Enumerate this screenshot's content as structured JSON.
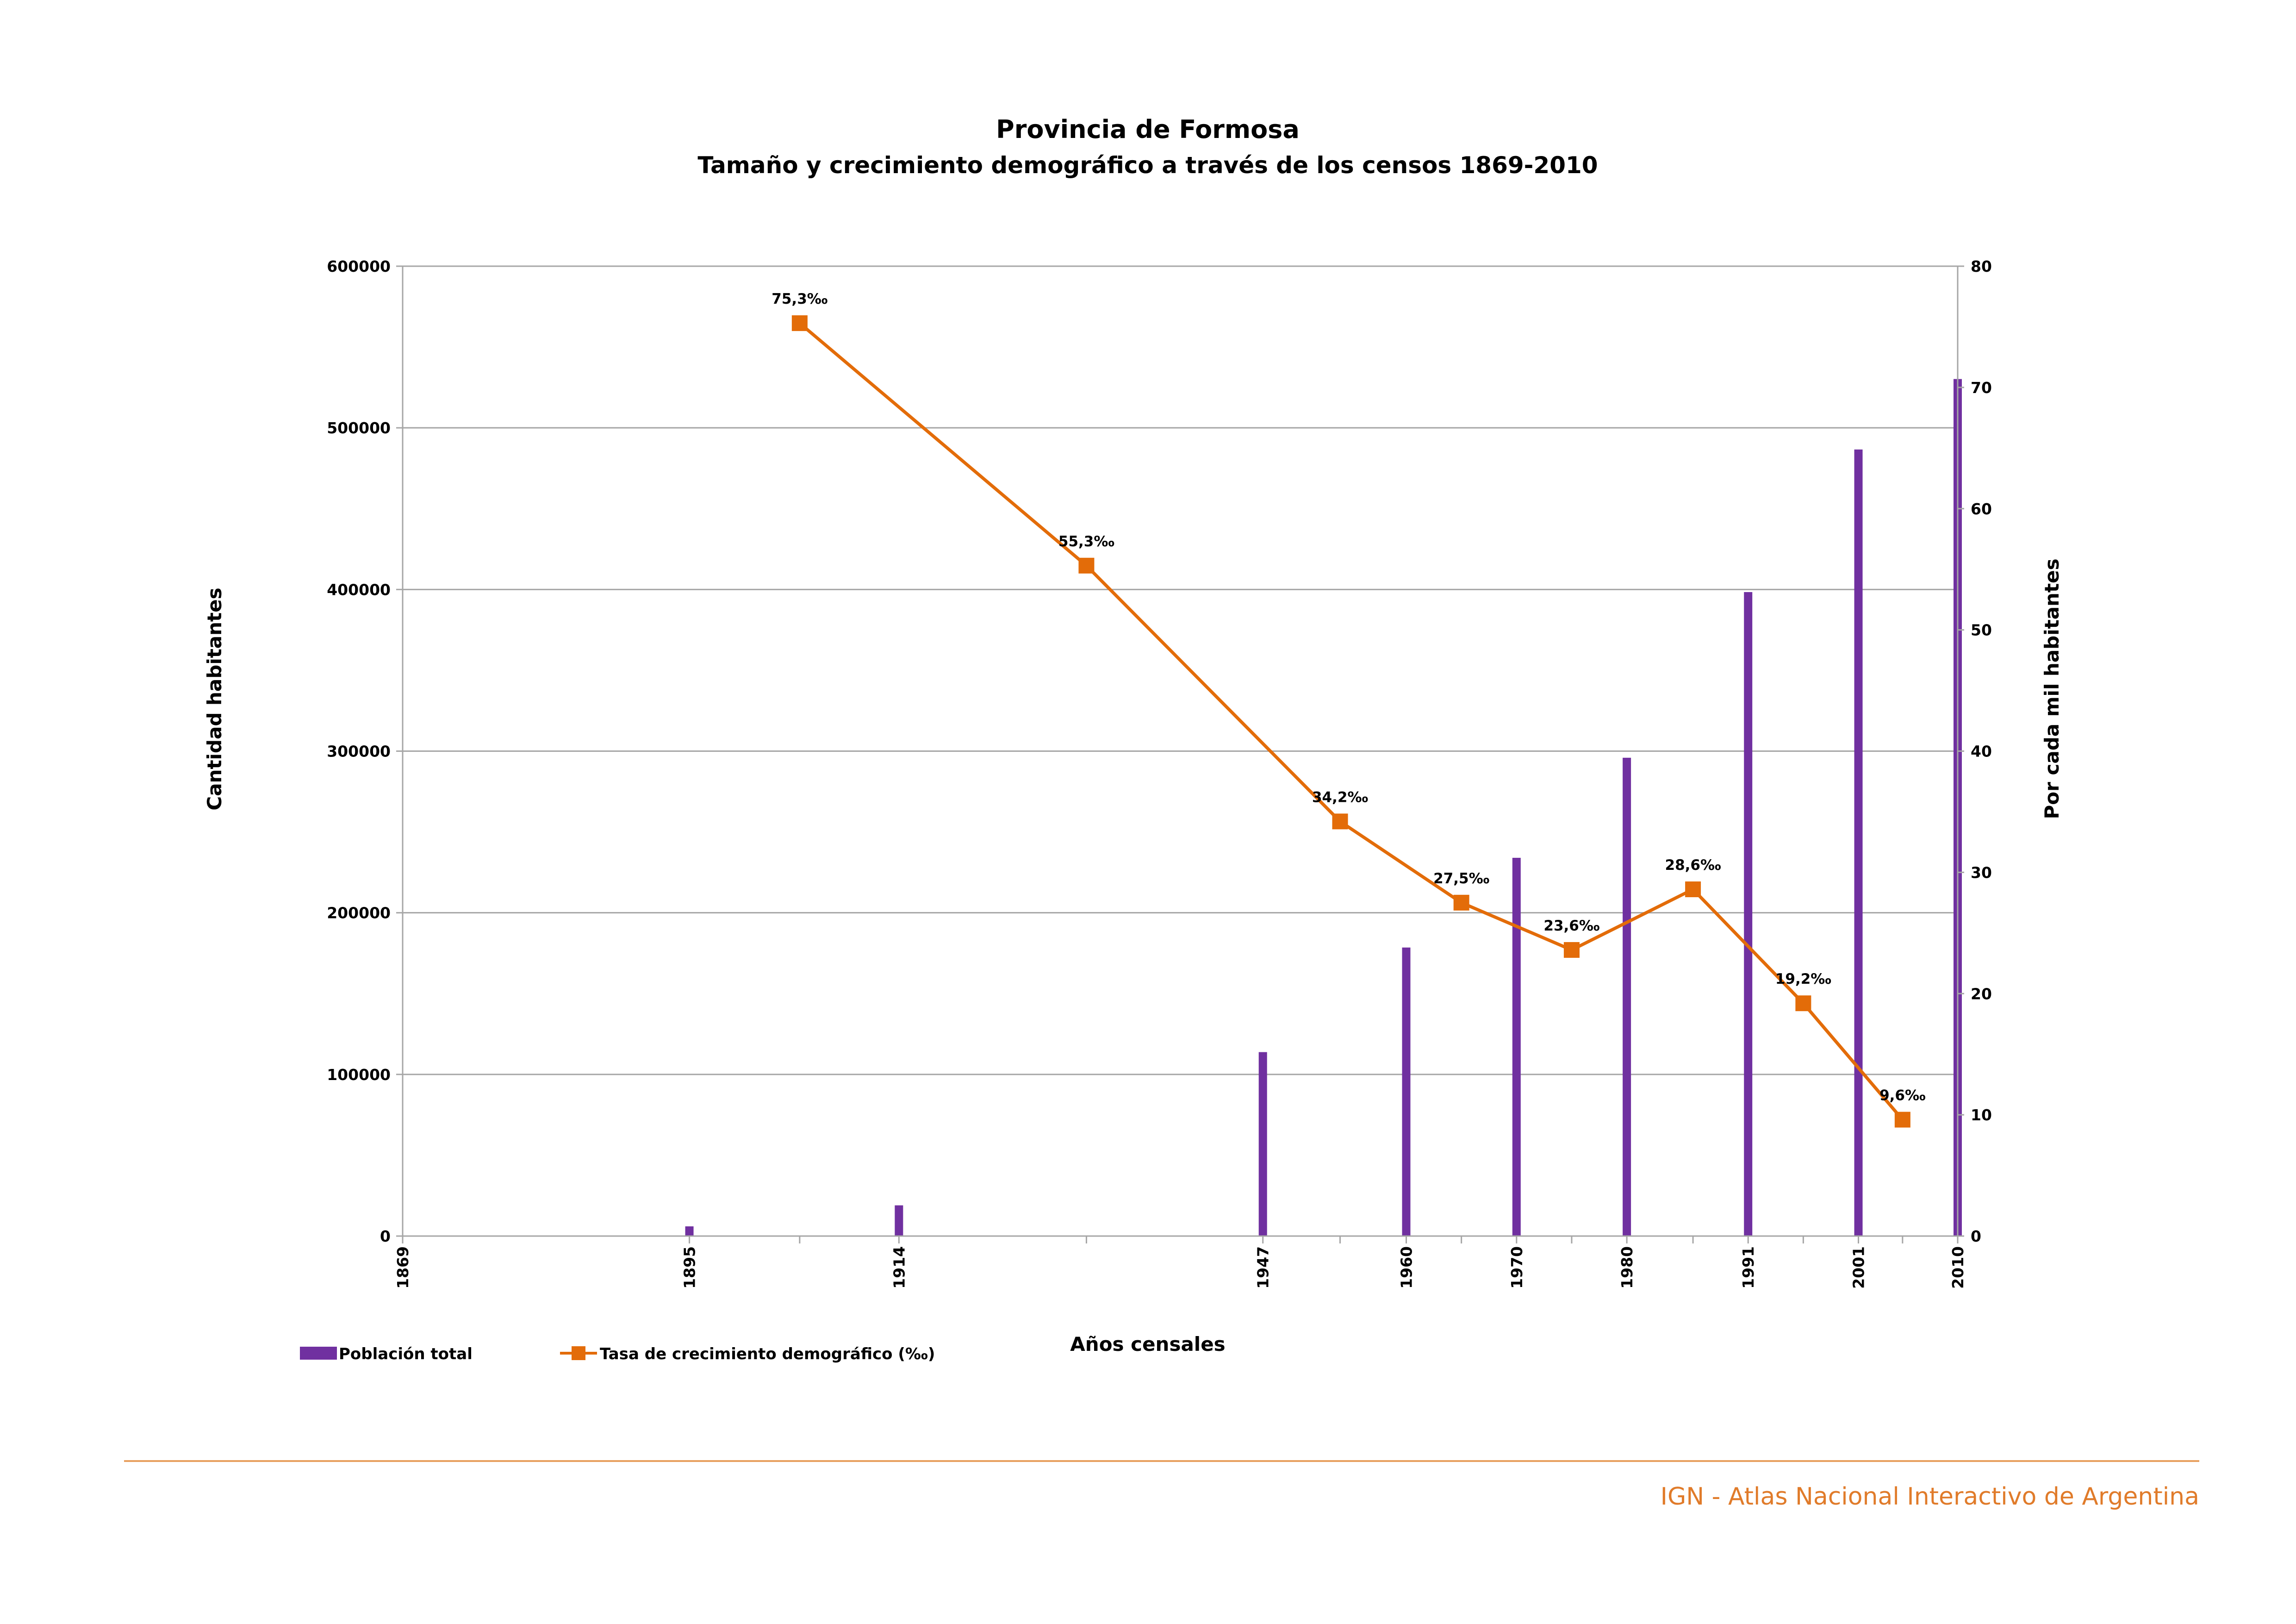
{
  "chart_data": {
    "type": "bar+line",
    "title": "Provincia de Formosa",
    "subtitle": "Tamaño y crecimiento demográfico a través de los censos 1869-2010",
    "xlabel": "Años censales",
    "ylabel": "Cantidad habitantes",
    "y2label": "Por cada mil habitantes",
    "x_range": [
      1869,
      2010
    ],
    "ylim": [
      0,
      600000
    ],
    "y_ticks": [
      "0",
      "100000",
      "200000",
      "300000",
      "400000",
      "500000",
      "600000"
    ],
    "y2lim": [
      0,
      80
    ],
    "y2_ticks": [
      "0",
      "10",
      "20",
      "30",
      "40",
      "50",
      "60",
      "70",
      "80"
    ],
    "x_tick_labels": [
      "1869",
      "1895",
      "1914",
      "1947",
      "1960",
      "1970",
      "1980",
      "1991",
      "2001",
      "2010"
    ],
    "grid": "horizontal",
    "legend": "bottom-left",
    "series": [
      {
        "name": "Población total",
        "kind": "bar",
        "axis": "left",
        "color": "#7030a0",
        "x": [
          1869,
          1895,
          1914,
          1947,
          1960,
          1970,
          1980,
          1991,
          2001,
          2010
        ],
        "values": [
          0,
          6000,
          19000,
          113800,
          178500,
          234000,
          295900,
          398400,
          486600,
          530200
        ]
      },
      {
        "name": "Tasa de crecimiento demográfico (‰)",
        "kind": "line",
        "axis": "right",
        "color": "#e36c09",
        "x": [
          1905,
          1931,
          1954,
          1965,
          1975,
          1986,
          1996,
          2005
        ],
        "values": [
          75.3,
          55.3,
          34.2,
          27.5,
          23.6,
          28.6,
          19.2,
          9.6
        ],
        "labels": [
          "75,3‰",
          "55,3‰",
          "34,2‰",
          "27,5‰",
          "23,6‰",
          "28,6‰",
          "19,2‰",
          "9,6‰"
        ]
      }
    ]
  },
  "footer": "IGN - Atlas Nacional Interactivo de Argentina",
  "colors": {
    "footer_line": "#e8a060",
    "footer_text": "#e07b2a",
    "grid": "#a6a6a6"
  }
}
